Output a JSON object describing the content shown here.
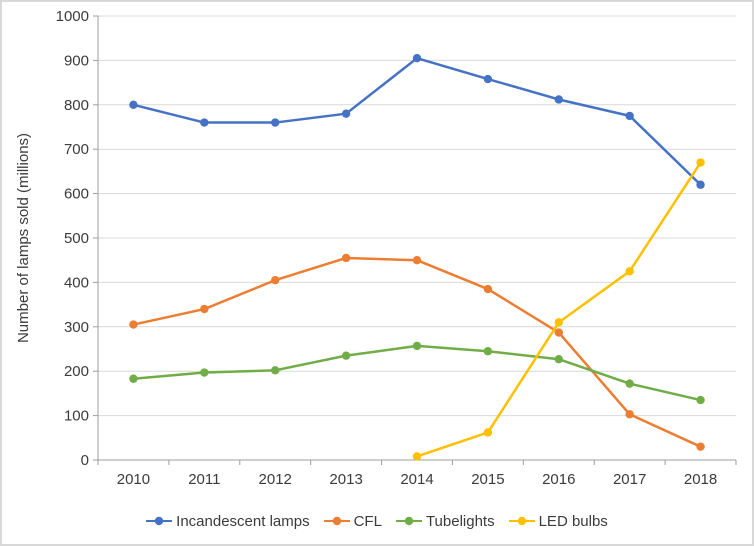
{
  "chart_data": {
    "type": "line",
    "title": "",
    "xlabel": "",
    "ylabel": "Number of lamps sold (millions)",
    "ylim": [
      0,
      1000
    ],
    "ytick_step": 100,
    "grid": true,
    "legend_position": "bottom",
    "x": [
      "2010",
      "2011",
      "2012",
      "2013",
      "2014",
      "2015",
      "2016",
      "2017",
      "2018"
    ],
    "series": [
      {
        "name": "Incandescent lamps",
        "color": "#4472C4",
        "values": [
          800,
          760,
          760,
          780,
          905,
          858,
          812,
          775,
          620
        ]
      },
      {
        "name": "CFL",
        "color": "#ED7D31",
        "values": [
          305,
          340,
          405,
          455,
          450,
          385,
          287,
          103,
          30
        ]
      },
      {
        "name": "Tubelights",
        "color": "#70AD47",
        "values": [
          183,
          197,
          202,
          235,
          257,
          245,
          227,
          172,
          135
        ]
      },
      {
        "name": "LED bulbs",
        "color": "#FFC000",
        "values": [
          null,
          null,
          null,
          null,
          8,
          62,
          310,
          425,
          670
        ]
      }
    ],
    "axis_color": "#9e9e9e",
    "grid_color": "#d9d9d9"
  }
}
